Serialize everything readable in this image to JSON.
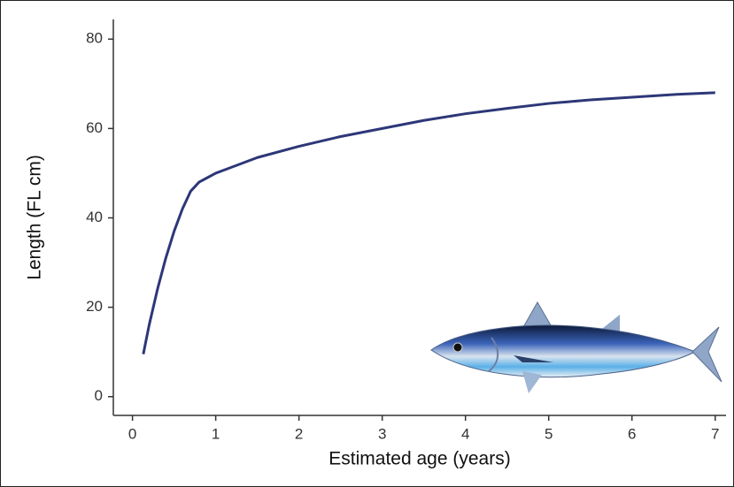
{
  "chart_data": {
    "type": "line",
    "x_label": "Estimated age (years)",
    "y_label": "Length (FL cm)",
    "x": [
      0.13,
      0.2,
      0.3,
      0.4,
      0.5,
      0.6,
      0.7,
      0.8,
      0.9,
      1,
      1.5,
      2,
      2.5,
      3,
      3.5,
      4,
      4.5,
      5,
      5.5,
      6,
      6.5,
      7
    ],
    "values": [
      9.5,
      16,
      24,
      31,
      37,
      42,
      46,
      48,
      49,
      50,
      53.5,
      56,
      58.2,
      60,
      61.8,
      63.3,
      64.5,
      65.6,
      66.4,
      67,
      67.6,
      68
    ],
    "color": "#2d3778",
    "xlim": [
      -0.23,
      7.13
    ],
    "xticks": [
      0,
      1,
      2,
      3,
      4,
      5,
      6,
      7
    ],
    "ylim": [
      -4.2,
      84.4
    ],
    "yticks": [
      0,
      20,
      40,
      60,
      80
    ]
  }
}
